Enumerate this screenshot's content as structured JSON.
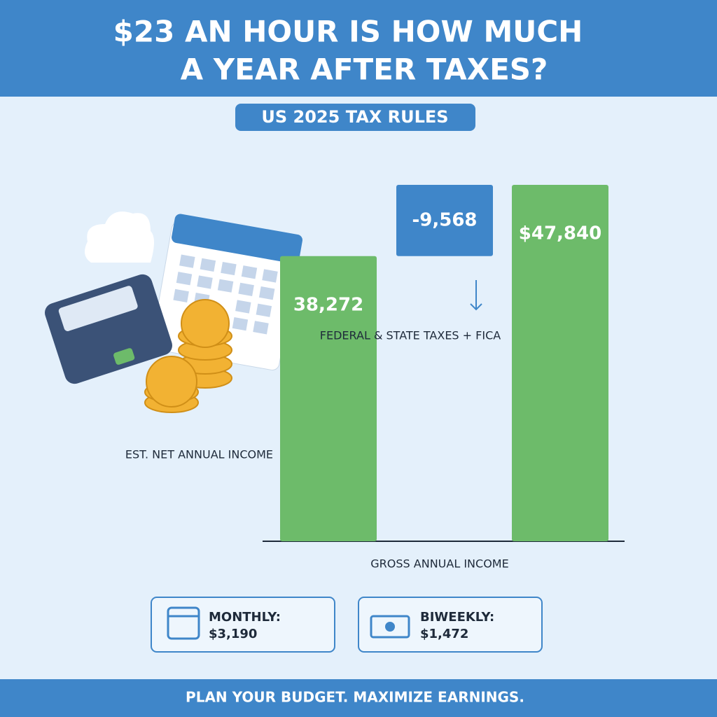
{
  "chart_data": {
    "type": "bar",
    "title": [
      "$23 AN HOUR IS HOW MUCH",
      "A YEAR AFTER TAXES?"
    ],
    "subtitle": "US 2025 TAX RULES",
    "categories": [
      "EST. NET ANNUAL INCOME",
      "FEDERAL & STATE TAXES + FICA",
      "GROSS ANNUAL INCOME"
    ],
    "values": [
      38272,
      -9568,
      47840
    ],
    "value_labels": [
      "38,272",
      "-9,568",
      "$47,840"
    ],
    "colors": [
      "#6dbb6a",
      "#3f86c9",
      "#6dbb6a"
    ]
  },
  "summary": [
    {
      "label": "MONTHLY:",
      "value": "$3,190"
    },
    {
      "label": "BIWEEKLY:",
      "value": "$1,472"
    }
  ],
  "footer": "PLAN YOUR BUDGET. MAXIMIZE EARNINGS."
}
